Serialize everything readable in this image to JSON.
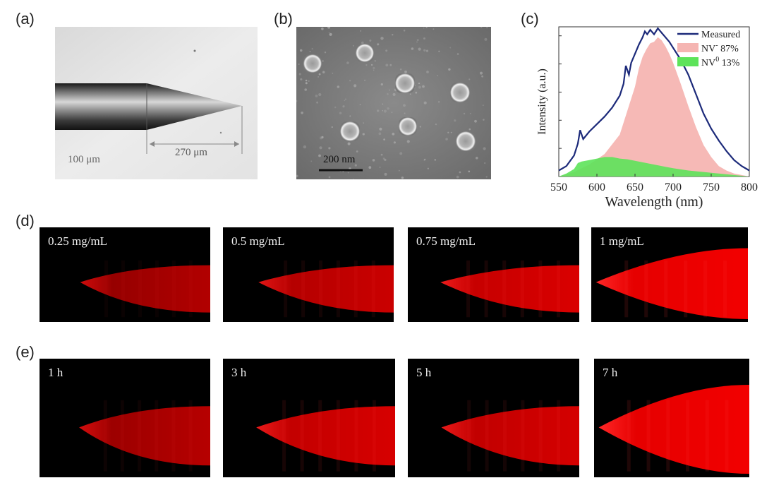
{
  "labels": {
    "a": "(a)",
    "b": "(b)",
    "c": "(c)",
    "d": "(d)",
    "e": "(e)"
  },
  "panel_a": {
    "scale_left": "100 μm",
    "scale_right": "270 μm"
  },
  "panel_b": {
    "scale_bar": "200 nm"
  },
  "chart_data": {
    "type": "area",
    "xlabel": "Wavelength (nm)",
    "ylabel": "Intensity (a.u.)",
    "xlim": [
      550,
      800
    ],
    "ylim": [
      0,
      1
    ],
    "xticks": [
      "550",
      "600",
      "650",
      "700",
      "750",
      "800"
    ],
    "legend": {
      "position": "top-right",
      "entries": [
        {
          "prefix": "Measured",
          "sup": "",
          "suffix": "",
          "color": "#1c2a7a",
          "kind": "line"
        },
        {
          "prefix": "NV",
          "sup": "-",
          "suffix": " 87%",
          "color": "#f5b5b2",
          "kind": "fill"
        },
        {
          "prefix": "NV",
          "sup": "0",
          "suffix": " 13%",
          "color": "#5de35a",
          "kind": "fill"
        }
      ]
    },
    "series": [
      {
        "name": "Measured",
        "x": [
          550,
          560,
          570,
          575,
          578,
          582,
          590,
          600,
          610,
          620,
          630,
          635,
          638,
          642,
          645,
          650,
          655,
          660,
          663,
          666,
          670,
          675,
          680,
          685,
          690,
          695,
          700,
          710,
          720,
          730,
          740,
          750,
          760,
          770,
          780,
          790,
          800
        ],
        "values": [
          0.04,
          0.07,
          0.14,
          0.22,
          0.31,
          0.25,
          0.3,
          0.35,
          0.4,
          0.46,
          0.54,
          0.62,
          0.74,
          0.68,
          0.76,
          0.82,
          0.88,
          0.93,
          0.97,
          0.95,
          0.98,
          0.95,
          0.99,
          0.96,
          0.93,
          0.9,
          0.86,
          0.78,
          0.68,
          0.55,
          0.42,
          0.32,
          0.24,
          0.17,
          0.11,
          0.07,
          0.04
        ]
      },
      {
        "name": "NV- 87%",
        "x": [
          550,
          570,
          590,
          610,
          630,
          640,
          645,
          650,
          655,
          660,
          665,
          670,
          675,
          680,
          685,
          690,
          695,
          700,
          710,
          720,
          730,
          740,
          750,
          760,
          770,
          780,
          790,
          800
        ],
        "values": [
          0.0,
          0.03,
          0.08,
          0.15,
          0.28,
          0.44,
          0.52,
          0.6,
          0.72,
          0.8,
          0.85,
          0.89,
          0.9,
          0.93,
          0.91,
          0.87,
          0.82,
          0.76,
          0.62,
          0.47,
          0.33,
          0.21,
          0.13,
          0.07,
          0.04,
          0.02,
          0.01,
          0.0
        ]
      },
      {
        "name": "NV0 13%",
        "x": [
          550,
          560,
          570,
          575,
          580,
          590,
          600,
          610,
          620,
          630,
          640,
          650,
          660,
          670,
          680,
          690,
          700,
          720,
          740,
          760,
          780,
          800
        ],
        "values": [
          0.0,
          0.02,
          0.05,
          0.09,
          0.1,
          0.11,
          0.12,
          0.13,
          0.13,
          0.12,
          0.115,
          0.105,
          0.095,
          0.085,
          0.075,
          0.065,
          0.055,
          0.04,
          0.03,
          0.02,
          0.01,
          0.0
        ]
      }
    ]
  },
  "panel_d": [
    {
      "label": "0.25 mg/mL",
      "brightness": 0.35
    },
    {
      "label": "0.5 mg/mL",
      "brightness": 0.6
    },
    {
      "label": "0.75 mg/mL",
      "brightness": 0.75
    },
    {
      "label": "1 mg/mL",
      "brightness": 1.0
    }
  ],
  "panel_e": [
    {
      "label": "1 h",
      "brightness": 0.4
    },
    {
      "label": "3 h",
      "brightness": 0.72
    },
    {
      "label": "5 h",
      "brightness": 0.7
    },
    {
      "label": "7 h",
      "brightness": 1.0
    }
  ]
}
